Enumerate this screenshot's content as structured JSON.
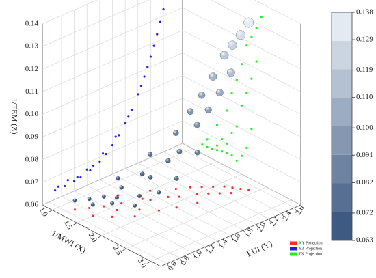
{
  "chart_data": {
    "type": "scatter3d",
    "zlabel": "1/TEM (Z)",
    "xlabel": "1/MWI (X)",
    "ylabel": "EUI (Y)",
    "x": [
      1.2,
      1.5,
      1.3,
      1.7,
      1.4,
      1.6,
      1.9,
      1.5,
      1.8,
      1.3,
      2.0,
      1.6,
      1.7,
      2.1,
      1.5,
      1.8,
      1.9,
      2.2,
      1.7,
      2.0,
      1.8,
      2.1,
      1.9,
      2.2,
      2.0,
      2.3,
      2.1,
      2.2,
      2.3,
      2.4
    ],
    "y": [
      0.7,
      0.75,
      0.85,
      0.9,
      1.0,
      1.05,
      1.1,
      1.2,
      1.25,
      1.3,
      1.4,
      1.45,
      1.5,
      1.6,
      1.65,
      1.7,
      1.8,
      1.85,
      1.9,
      2.0,
      2.05,
      2.1,
      2.15,
      2.2,
      2.25,
      2.3,
      2.35,
      2.4,
      2.45,
      2.5
    ],
    "z": [
      0.064,
      0.065,
      0.064,
      0.066,
      0.0643,
      0.0655,
      0.0648,
      0.067,
      0.066,
      0.0675,
      0.0681,
      0.071,
      0.0701,
      0.0728,
      0.076,
      0.076,
      0.08,
      0.0823,
      0.0847,
      0.0904,
      0.0935,
      0.097,
      0.1006,
      0.1045,
      0.1087,
      0.1132,
      0.118,
      0.123,
      0.128,
      0.134
    ],
    "xlim": [
      0.8,
      3.2
    ],
    "ylim": [
      0.5,
      2.7
    ],
    "zlim": [
      0.06,
      0.14
    ],
    "xticks": [
      {
        "value": 1.0,
        "label": "1.0"
      },
      1.5,
      {
        "value": 2.0,
        "label": "2.0"
      },
      2.5,
      {
        "value": 3.0,
        "label": "3.0"
      }
    ],
    "yticks": [
      0.6,
      0.8,
      {
        "value": 1.0,
        "label": "1.0"
      },
      1.2,
      1.4,
      1.6,
      1.8,
      {
        "value": 2.0,
        "label": "2.0"
      },
      2.2,
      2.4,
      2.6
    ],
    "zticks": [
      0.06,
      0.07,
      0.08,
      0.09,
      {
        "value": 0.1,
        "label": "0.10"
      },
      0.11,
      0.12,
      0.13,
      0.14
    ],
    "colorbar_ticks": [
      0.063,
      0.072,
      0.082,
      0.091,
      {
        "value": 0.1,
        "label": "0.100"
      },
      {
        "value": 0.11,
        "label": "0.110"
      },
      0.119,
      0.129,
      0.138
    ],
    "colormap": [
      "#34507a",
      "#eef4fa"
    ],
    "grid": true,
    "projections": [
      {
        "name": "XY Projection",
        "color": "#ff2a2a"
      },
      {
        "name": "YZ Projection",
        "color": "#1f1fe6"
      },
      {
        "name": "ZX Projection",
        "color": "#22ee22"
      }
    ]
  }
}
